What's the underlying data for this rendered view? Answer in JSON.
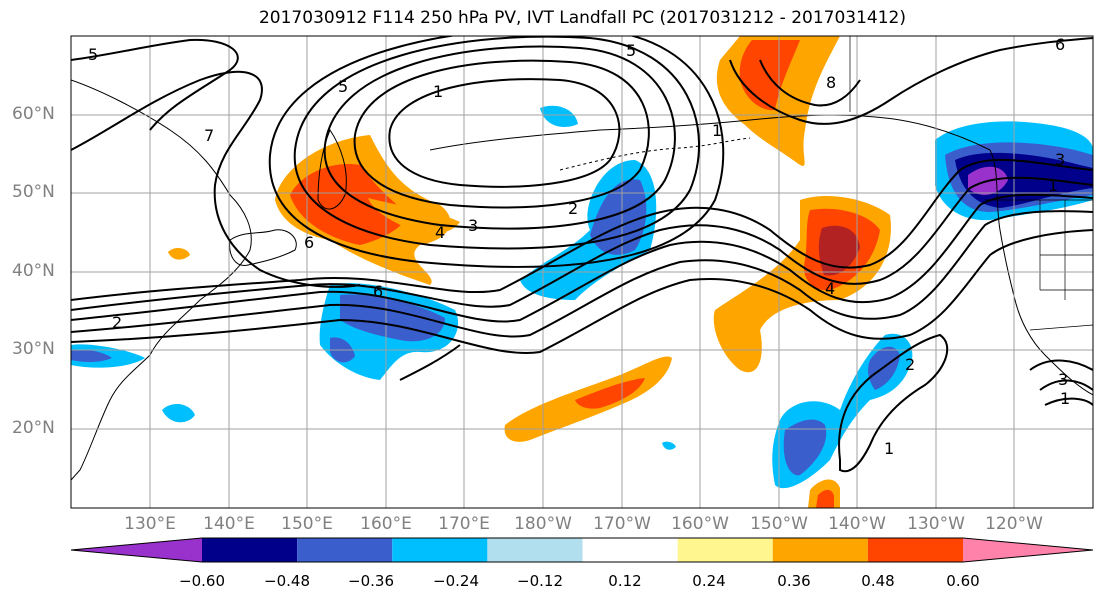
{
  "title": "2017030912 F114 250 hPa PV, IVT Landfall PC (2017031212 - 2017031412)",
  "map": {
    "lat_labels": [
      "60°N",
      "50°N",
      "40°N",
      "30°N",
      "20°N"
    ],
    "lon_labels": [
      "130°E",
      "140°E",
      "150°E",
      "160°E",
      "170°E",
      "180°W",
      "170°W",
      "160°W",
      "150°W",
      "140°W",
      "130°W",
      "120°W"
    ],
    "contour_labels": [
      "5",
      "5",
      "5",
      "1",
      "7",
      "2",
      "3",
      "4",
      "6",
      "6",
      "2",
      "1",
      "8",
      "6",
      "3",
      "1",
      "4",
      "1",
      "2",
      "3",
      "1"
    ]
  },
  "colorbar": {
    "colors": [
      "#9932cc",
      "#00008b",
      "#3a5fcd",
      "#00bfff",
      "#b2dfee",
      "#ffffff",
      "#fff68f",
      "#ffa500",
      "#ff4500",
      "#b22222",
      "#ff82ab"
    ],
    "tick_labels": [
      "−0.60",
      "−0.48",
      "−0.36",
      "−0.24",
      "−0.12",
      "0.12",
      "0.24",
      "0.36",
      "0.48",
      "0.60"
    ]
  }
}
